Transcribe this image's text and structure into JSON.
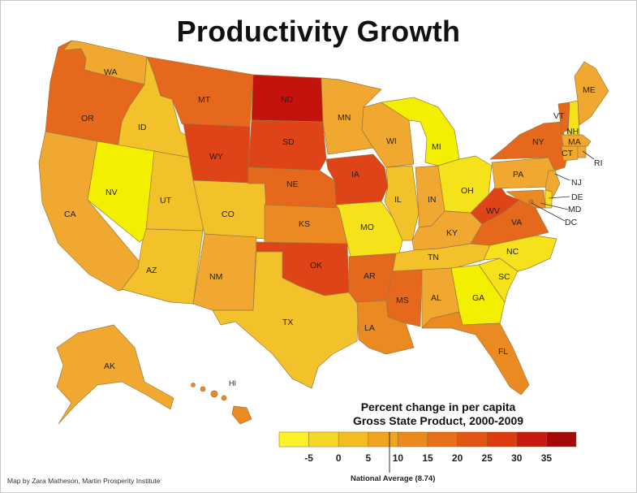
{
  "title": "Productivity Growth",
  "legend": {
    "title_line1": "Percent change in per capita",
    "title_line2": "Gross State Product, 2000-2009",
    "bins": [
      "#fbf22a",
      "#f7d726",
      "#f3bd22",
      "#efa31f",
      "#eb891c",
      "#e76f18",
      "#e35514",
      "#df3b10",
      "#c81a10",
      "#a40a0a"
    ],
    "ticks": [
      "-5",
      "0",
      "5",
      "10",
      "15",
      "20",
      "25",
      "30",
      "35"
    ],
    "national_average": "National Average (8.74)"
  },
  "credit": "Map by Zara Matheson, Martin Prosperity Institute",
  "colors": {
    "yellow": "#f2f000",
    "light_yellow": "#f5e21a",
    "gold": "#f3c12a",
    "light_orange": "#f0a830",
    "orange": "#ec8a22",
    "dark_orange": "#e6681c",
    "red_orange": "#de4417",
    "red": "#c4120c"
  },
  "states": [
    {
      "abbr": "WA",
      "color": "#f0a830"
    },
    {
      "abbr": "OR",
      "color": "#e6681c"
    },
    {
      "abbr": "CA",
      "color": "#f0a830"
    },
    {
      "abbr": "ID",
      "color": "#f3c12a"
    },
    {
      "abbr": "NV",
      "color": "#f2f000"
    },
    {
      "abbr": "UT",
      "color": "#f3c12a"
    },
    {
      "abbr": "AZ",
      "color": "#f3c12a"
    },
    {
      "abbr": "MT",
      "color": "#e6681c"
    },
    {
      "abbr": "WY",
      "color": "#de4417"
    },
    {
      "abbr": "CO",
      "color": "#f3c12a"
    },
    {
      "abbr": "NM",
      "color": "#f0a830"
    },
    {
      "abbr": "ND",
      "color": "#c4120c"
    },
    {
      "abbr": "SD",
      "color": "#de4417"
    },
    {
      "abbr": "NE",
      "color": "#e6681c"
    },
    {
      "abbr": "KS",
      "color": "#ec8a22"
    },
    {
      "abbr": "OK",
      "color": "#de4417"
    },
    {
      "abbr": "TX",
      "color": "#f3c12a"
    },
    {
      "abbr": "MN",
      "color": "#f0a830"
    },
    {
      "abbr": "IA",
      "color": "#de4417"
    },
    {
      "abbr": "MO",
      "color": "#f5e21a"
    },
    {
      "abbr": "AR",
      "color": "#e6681c"
    },
    {
      "abbr": "LA",
      "color": "#ec8a22"
    },
    {
      "abbr": "WI",
      "color": "#f0a830"
    },
    {
      "abbr": "IL",
      "color": "#f3c12a"
    },
    {
      "abbr": "MI",
      "color": "#f2f000"
    },
    {
      "abbr": "IN",
      "color": "#f0a830"
    },
    {
      "abbr": "OH",
      "color": "#f5e21a"
    },
    {
      "abbr": "KY",
      "color": "#f0a830"
    },
    {
      "abbr": "TN",
      "color": "#f3c12a"
    },
    {
      "abbr": "MS",
      "color": "#e6681c"
    },
    {
      "abbr": "AL",
      "color": "#f0a830"
    },
    {
      "abbr": "GA",
      "color": "#f2f000"
    },
    {
      "abbr": "FL",
      "color": "#ec8a22"
    },
    {
      "abbr": "SC",
      "color": "#f5e21a"
    },
    {
      "abbr": "NC",
      "color": "#f5e21a"
    },
    {
      "abbr": "VA",
      "color": "#e6681c"
    },
    {
      "abbr": "WV",
      "color": "#de4417"
    },
    {
      "abbr": "PA",
      "color": "#f0a830"
    },
    {
      "abbr": "NY",
      "color": "#e6681c"
    },
    {
      "abbr": "VT",
      "color": "#e6681c"
    },
    {
      "abbr": "NH",
      "color": "#f5e21a"
    },
    {
      "abbr": "ME",
      "color": "#f0a830"
    },
    {
      "abbr": "MA",
      "color": "#f0a830"
    },
    {
      "abbr": "CT",
      "color": "#f0a830"
    },
    {
      "abbr": "RI",
      "color": "#f0a830"
    },
    {
      "abbr": "NJ",
      "color": "#f0a830"
    },
    {
      "abbr": "DE",
      "color": "#f5e21a"
    },
    {
      "abbr": "MD",
      "color": "#ec8a22"
    },
    {
      "abbr": "DC",
      "color": "#e6681c"
    },
    {
      "abbr": "AK",
      "color": "#f0a830"
    },
    {
      "abbr": "HI",
      "color": "#ec8a22"
    }
  ]
}
